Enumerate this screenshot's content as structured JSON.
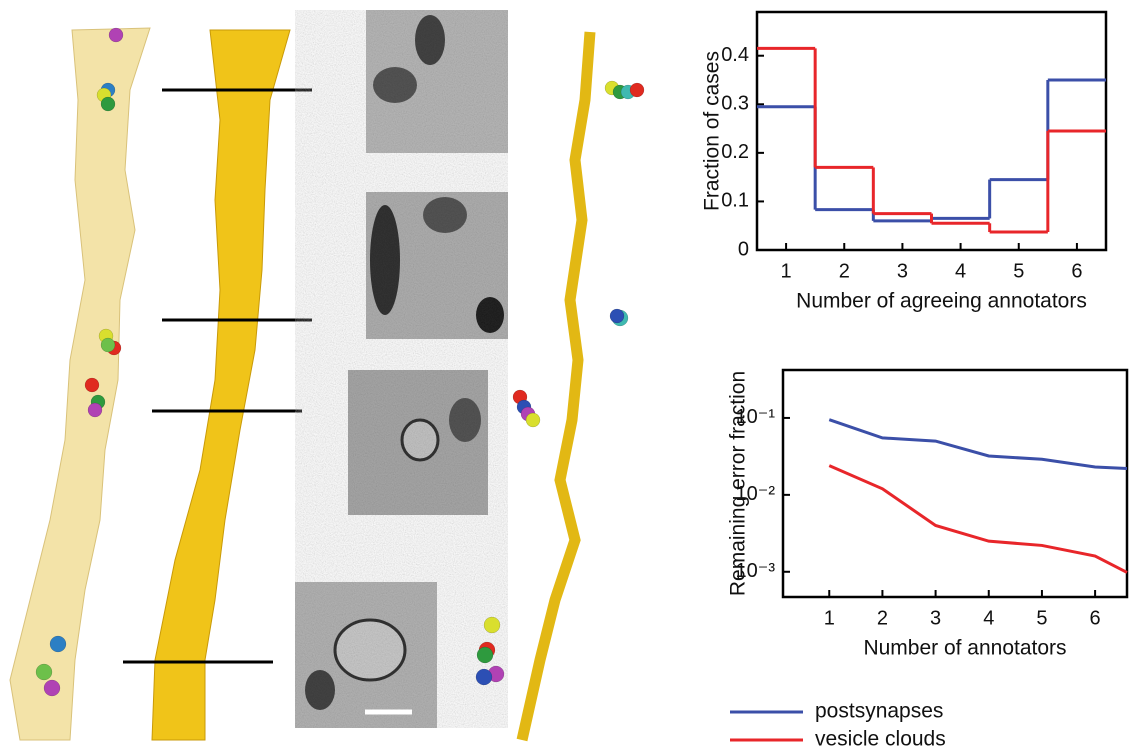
{
  "chart_data": [
    {
      "type": "step",
      "xlabel": "Number of agreeing annotators",
      "ylabel": "Fraction of cases",
      "x": [
        1,
        2,
        3,
        4,
        5,
        6
      ],
      "xlim": [
        0.5,
        6.5
      ],
      "xticks": [
        1,
        2,
        3,
        4,
        5,
        6
      ],
      "ylim": [
        0,
        0.49
      ],
      "yticks": [
        0,
        0.1,
        0.2,
        0.3,
        0.4
      ],
      "series": [
        {
          "color": "#3b4fa8",
          "values": [
            0.295,
            0.083,
            0.06,
            0.065,
            0.145,
            0.35
          ]
        },
        {
          "color": "#e8262a",
          "values": [
            0.415,
            0.17,
            0.075,
            0.055,
            0.037,
            0.245
          ]
        }
      ]
    },
    {
      "type": "line",
      "log_y": true,
      "xlabel": "Number of annotators",
      "ylabel": "Remaining error fraction",
      "x": [
        1,
        2,
        3,
        4,
        5,
        6,
        6.6
      ],
      "xlim": [
        0.13,
        6.6
      ],
      "xticks": [
        1,
        2,
        3,
        4,
        5,
        6
      ],
      "ylim": [
        0.00047,
        0.42
      ],
      "yticks": [
        {
          "value": 0.1,
          "label": "10⁻¹"
        },
        {
          "value": 0.01,
          "label": "10⁻²"
        },
        {
          "value": 0.001,
          "label": "10⁻³"
        }
      ],
      "series": [
        {
          "name": "postsynapses",
          "color": "#3b4fa8",
          "values": [
            0.095,
            0.055,
            0.05,
            0.032,
            0.029,
            0.023,
            0.022
          ]
        },
        {
          "name": "vesicle clouds",
          "color": "#e8262a",
          "values": [
            0.024,
            0.012,
            0.004,
            0.0025,
            0.0022,
            0.0016,
            0.00098
          ]
        }
      ]
    }
  ]
}
